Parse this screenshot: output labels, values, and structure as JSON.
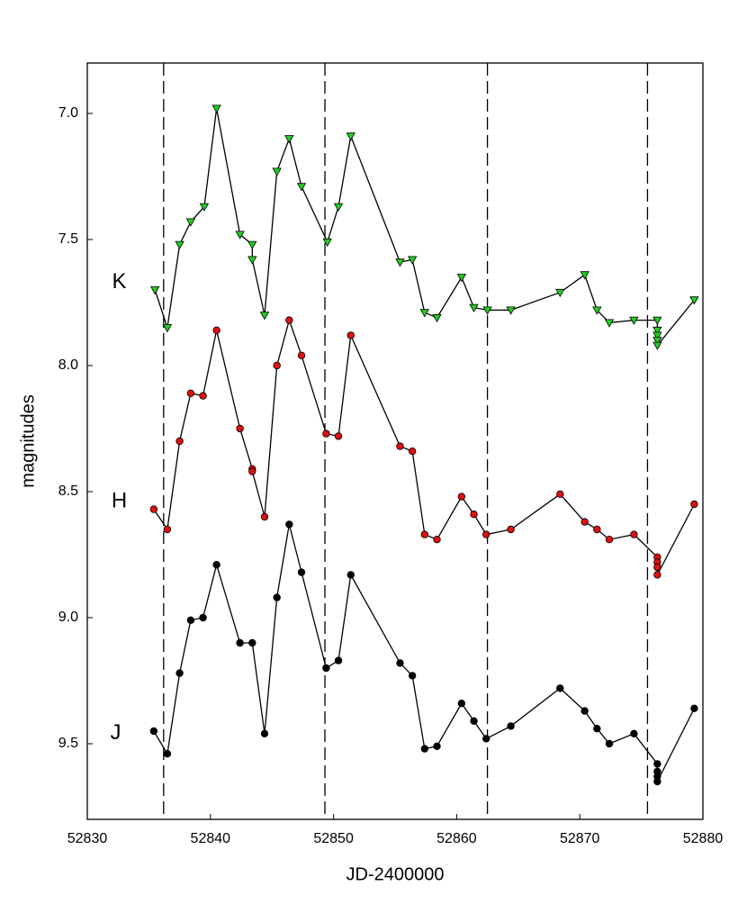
{
  "chart_data": {
    "type": "line",
    "xlabel": "JD-2400000",
    "ylabel": "magnitudes",
    "xlim": [
      52830,
      52880
    ],
    "ylim": [
      6.8,
      9.8
    ],
    "y_inverted": true,
    "xticks": [
      52830,
      52840,
      52850,
      52860,
      52870,
      52880
    ],
    "yticks": [
      {
        "value": 7,
        "label": "7.0"
      },
      7.5,
      {
        "value": 8,
        "label": "8.0"
      },
      8.5,
      {
        "value": 9,
        "label": "9.0"
      },
      9.5
    ],
    "vlines": [
      52836.2,
      52849.3,
      52862.5,
      52875.5
    ],
    "annotations": [
      {
        "text": "K",
        "x": 52832.6,
        "y": 7.67
      },
      {
        "text": "H",
        "x": 52832.6,
        "y": 8.54
      },
      {
        "text": "J",
        "x": 52832.3,
        "y": 9.46
      }
    ],
    "series": [
      {
        "name": "K",
        "color": "#22cc22",
        "marker": "triangle-down",
        "x": [
          52835.5,
          52836.5,
          52837.5,
          52838.4,
          52839.5,
          52840.5,
          52842.4,
          52843.4,
          52843.4,
          52844.4,
          52845.4,
          52846.4,
          52847.4,
          52849.5,
          52850.4,
          52851.4,
          52855.4,
          52856.4,
          52857.4,
          52858.4,
          52860.4,
          52861.4,
          52862.5,
          52864.4,
          52868.4,
          52870.4,
          52871.4,
          52872.4,
          52874.4,
          52876.3,
          52876.3,
          52876.3,
          52876.3,
          52876.3,
          52879.3
        ],
        "values": [
          7.7,
          7.85,
          7.52,
          7.43,
          7.37,
          6.98,
          7.48,
          7.52,
          7.58,
          7.8,
          7.23,
          7.1,
          7.29,
          7.51,
          7.37,
          7.09,
          7.59,
          7.58,
          7.79,
          7.81,
          7.65,
          7.77,
          7.78,
          7.78,
          7.71,
          7.64,
          7.78,
          7.83,
          7.82,
          7.82,
          7.86,
          7.88,
          7.9,
          7.92,
          7.74
        ]
      },
      {
        "name": "H",
        "color": "#dd1111",
        "marker": "circle",
        "x": [
          52835.4,
          52836.5,
          52837.5,
          52838.4,
          52839.4,
          52840.5,
          52842.4,
          52843.4,
          52843.4,
          52844.4,
          52845.4,
          52846.4,
          52847.4,
          52849.4,
          52850.4,
          52851.4,
          52855.4,
          52856.4,
          52857.4,
          52858.4,
          52860.4,
          52861.4,
          52862.4,
          52864.4,
          52868.4,
          52870.4,
          52871.4,
          52872.4,
          52874.4,
          52876.3,
          52876.3,
          52876.3,
          52876.3,
          52879.3
        ],
        "values": [
          8.57,
          8.65,
          8.3,
          8.11,
          8.12,
          7.86,
          8.25,
          8.41,
          8.42,
          8.6,
          8.0,
          7.82,
          7.96,
          8.27,
          8.28,
          7.88,
          8.32,
          8.34,
          8.67,
          8.69,
          8.52,
          8.59,
          8.67,
          8.65,
          8.51,
          8.62,
          8.65,
          8.69,
          8.67,
          8.76,
          8.78,
          8.8,
          8.83,
          8.55
        ]
      },
      {
        "name": "J",
        "color": "#000000",
        "marker": "circle",
        "x": [
          52835.4,
          52836.5,
          52837.5,
          52838.4,
          52839.4,
          52840.5,
          52842.4,
          52843.4,
          52844.4,
          52845.4,
          52846.4,
          52847.4,
          52849.4,
          52850.4,
          52851.4,
          52855.4,
          52856.4,
          52857.4,
          52858.4,
          52860.4,
          52861.4,
          52862.4,
          52864.4,
          52868.4,
          52870.4,
          52871.4,
          52872.4,
          52874.4,
          52876.3,
          52876.3,
          52876.3,
          52876.3,
          52879.3
        ],
        "values": [
          9.45,
          9.54,
          9.22,
          9.01,
          9.0,
          8.79,
          9.1,
          9.1,
          9.46,
          8.92,
          8.63,
          8.82,
          9.2,
          9.17,
          8.83,
          9.18,
          9.23,
          9.52,
          9.51,
          9.34,
          9.41,
          9.48,
          9.43,
          9.28,
          9.37,
          9.44,
          9.5,
          9.46,
          9.58,
          9.61,
          9.63,
          9.65,
          9.36
        ]
      }
    ]
  }
}
